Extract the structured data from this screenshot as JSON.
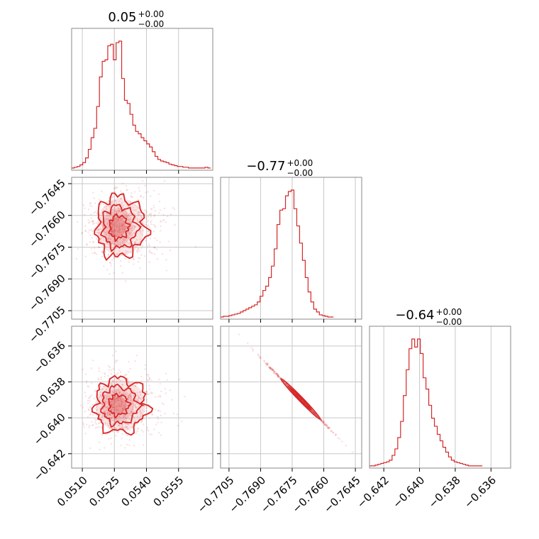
{
  "chart_data": {
    "type": "corner",
    "colors": {
      "line": "#d62728",
      "fill": "#d62728",
      "grid": "#c8c8c8",
      "frame": "#888888"
    },
    "grid": true,
    "titles": [
      {
        "main": "0.05",
        "plus": "+0.00",
        "minus": "−0.00"
      },
      {
        "main": "−0.77",
        "plus": "+0.00",
        "minus": "−0.00"
      },
      {
        "main": "−0.64",
        "plus": "+0.00",
        "minus": "−0.00"
      }
    ],
    "parameters": [
      {
        "range": [
          0.0505,
          0.0571
        ],
        "ticks": [
          0.051,
          0.0525,
          0.054,
          0.0555
        ],
        "tick_labels": [
          "0.0510",
          "0.0525",
          "0.0540",
          "0.0555"
        ]
      },
      {
        "range": [
          -0.7709,
          -0.7642
        ],
        "ticks": [
          -0.7705,
          -0.769,
          -0.7675,
          -0.766,
          -0.7645
        ],
        "tick_labels": [
          "−0.7705",
          "−0.7690",
          "−0.7675",
          "−0.7660",
          "−0.7645"
        ]
      },
      {
        "range": [
          -0.6428,
          -0.6349
        ],
        "ticks": [
          -0.642,
          -0.64,
          -0.638,
          -0.636
        ],
        "tick_labels": [
          "−0.642",
          "−0.640",
          "−0.638",
          "−0.636"
        ]
      }
    ],
    "histograms": [
      {
        "edges_start": 0.0505,
        "bin_width": 0.00013,
        "counts": [
          1,
          2,
          3,
          5,
          8,
          14,
          25,
          40,
          52,
          80,
          118,
          138,
          140,
          158,
          160,
          140,
          162,
          164,
          116,
          88,
          84,
          70,
          56,
          48,
          45,
          40,
          36,
          32,
          28,
          22,
          16,
          12,
          10,
          9,
          8,
          6,
          5,
          4,
          3,
          3,
          2,
          2,
          1,
          1,
          1,
          1,
          1,
          1,
          2,
          1
        ]
      },
      {
        "edges_start": -0.7709,
        "bin_width": 0.000134,
        "counts": [
          1,
          2,
          2,
          3,
          4,
          5,
          6,
          8,
          10,
          12,
          14,
          16,
          18,
          22,
          30,
          38,
          44,
          56,
          72,
          96,
          130,
          150,
          152,
          170,
          176,
          178,
          152,
          128,
          104,
          80,
          56,
          36,
          22,
          12,
          8,
          4,
          3,
          2,
          1,
          1
        ]
      },
      {
        "edges_start": -0.6428,
        "bin_width": 0.000158,
        "counts": [
          1,
          1,
          2,
          3,
          4,
          5,
          6,
          8,
          14,
          22,
          36,
          56,
          88,
          120,
          146,
          158,
          148,
          158,
          140,
          110,
          96,
          76,
          60,
          50,
          40,
          32,
          24,
          18,
          12,
          8,
          6,
          5,
          4,
          3,
          2,
          1,
          1,
          1,
          1,
          1
        ]
      }
    ],
    "pairs": [
      {
        "x_param": 0,
        "y_param": 1,
        "center": [
          0.05265,
          -0.76655
        ],
        "spread": [
          0.00055,
          0.00068
        ],
        "corr": 0.0
      },
      {
        "x_param": 0,
        "y_param": 2,
        "center": [
          0.05265,
          -0.6393
        ],
        "spread": [
          0.00058,
          0.00072
        ],
        "corr": 0.0
      },
      {
        "x_param": 1,
        "y_param": 2,
        "center": [
          -0.7671,
          -0.63895
        ],
        "spread": [
          0.00062,
          0.00075
        ],
        "corr": -0.999
      }
    ]
  }
}
